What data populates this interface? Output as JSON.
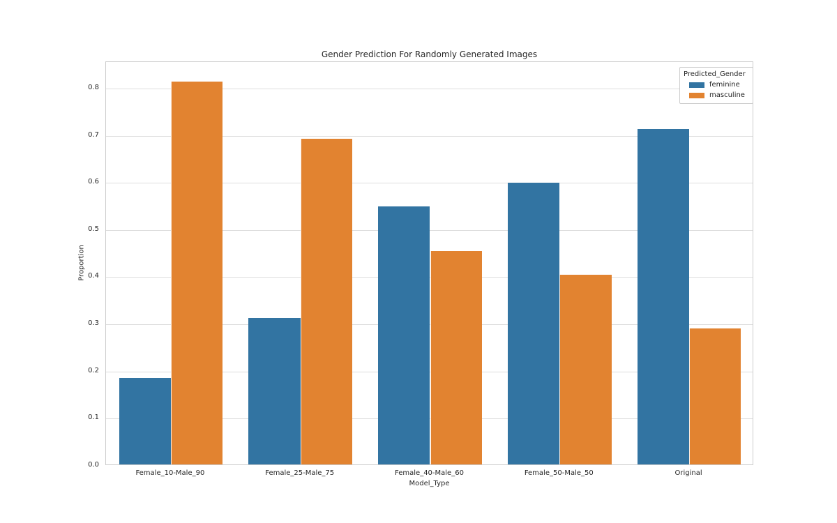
{
  "chart_data": {
    "type": "bar",
    "title": "Gender Prediction For Randomly Generated Images",
    "xlabel": "Model_Type",
    "ylabel": "Proportion",
    "categories": [
      "Female_10-Male_90",
      "Female_25-Male_75",
      "Female_40-Male_60",
      "Female_50-Male_50",
      "Original"
    ],
    "series": [
      {
        "name": "feminine",
        "color": "#3274A2",
        "values": [
          0.184,
          0.31,
          0.547,
          0.597,
          0.711
        ]
      },
      {
        "name": "masculine",
        "color": "#E28330",
        "values": [
          0.812,
          0.69,
          0.452,
          0.402,
          0.288
        ]
      }
    ],
    "ylim": [
      0,
      0.856
    ],
    "yticks": [
      0.0,
      0.1,
      0.2,
      0.3,
      0.4,
      0.5,
      0.6,
      0.7,
      0.8
    ],
    "grid": "horizontal",
    "legend": {
      "title": "Predicted_Gender",
      "position": "upper right"
    }
  },
  "colors": {
    "feminine": "#3274A2",
    "masculine": "#E28330",
    "grid": "#dcdcdc",
    "spine": "#cccccc",
    "text": "#262626",
    "background": "#ffffff"
  }
}
